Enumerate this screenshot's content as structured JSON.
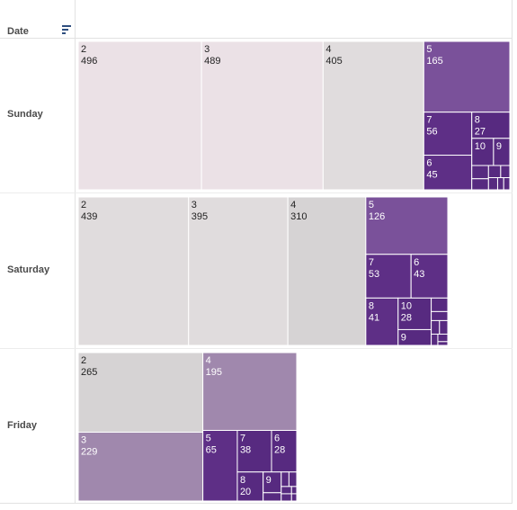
{
  "header": {
    "column_label": "Date",
    "sort_icon": "sort-descending-icon"
  },
  "colors": {
    "scale": [
      "#ebe1e6",
      "#e0dcdd",
      "#d6d3d4",
      "#a088ad",
      "#7a519a",
      "#5e2f86",
      "#572a80"
    ],
    "text_dark": "#222222",
    "text_light": "#ffffff"
  },
  "chart_data": {
    "type": "treemap",
    "title": "",
    "row_field": "Date",
    "rows": [
      {
        "label": "Sunday",
        "items": [
          {
            "name": "2",
            "value": 496,
            "label": "496"
          },
          {
            "name": "3",
            "value": 489,
            "label": "489"
          },
          {
            "name": "4",
            "value": 405,
            "label": "405"
          },
          {
            "name": "5",
            "value": 165,
            "label": "165"
          },
          {
            "name": "7",
            "value": 56,
            "label": "56"
          },
          {
            "name": "6",
            "value": 45,
            "label": "45"
          },
          {
            "name": "8",
            "value": 27,
            "label": "27"
          },
          {
            "name": "10",
            "value": 16,
            "label": ""
          },
          {
            "name": "9",
            "value": 12,
            "label": ""
          },
          {
            "name": "",
            "value": 6,
            "label": ""
          },
          {
            "name": "",
            "value": 5,
            "label": ""
          },
          {
            "name": "",
            "value": 4,
            "label": ""
          },
          {
            "name": "",
            "value": 3,
            "label": ""
          },
          {
            "name": "",
            "value": 3,
            "label": ""
          },
          {
            "name": "",
            "value": 2,
            "label": ""
          },
          {
            "name": "",
            "value": 2,
            "label": ""
          }
        ]
      },
      {
        "label": "Saturday",
        "items": [
          {
            "name": "2",
            "value": 439,
            "label": "439"
          },
          {
            "name": "3",
            "value": 395,
            "label": "395"
          },
          {
            "name": "4",
            "value": 310,
            "label": "310"
          },
          {
            "name": "5",
            "value": 126,
            "label": "126"
          },
          {
            "name": "7",
            "value": 53,
            "label": "53"
          },
          {
            "name": "6",
            "value": 43,
            "label": "43"
          },
          {
            "name": "8",
            "value": 41,
            "label": "41"
          },
          {
            "name": "10",
            "value": 28,
            "label": "28"
          },
          {
            "name": "9",
            "value": 14,
            "label": ""
          },
          {
            "name": "",
            "value": 6,
            "label": ""
          },
          {
            "name": "",
            "value": 4,
            "label": ""
          },
          {
            "name": "",
            "value": 3,
            "label": ""
          },
          {
            "name": "",
            "value": 3,
            "label": ""
          },
          {
            "name": "",
            "value": 2,
            "label": ""
          },
          {
            "name": "",
            "value": 2,
            "label": ""
          },
          {
            "name": "",
            "value": 1,
            "label": ""
          }
        ]
      },
      {
        "label": "Friday",
        "items": [
          {
            "name": "2",
            "value": 265,
            "label": "265"
          },
          {
            "name": "3",
            "value": 229,
            "label": "229"
          },
          {
            "name": "4",
            "value": 195,
            "label": "195"
          },
          {
            "name": "5",
            "value": 65,
            "label": "65"
          },
          {
            "name": "7",
            "value": 38,
            "label": "38"
          },
          {
            "name": "6",
            "value": 28,
            "label": "28"
          },
          {
            "name": "8",
            "value": 20,
            "label": "20"
          },
          {
            "name": "9",
            "value": 10,
            "label": ""
          },
          {
            "name": "",
            "value": 4,
            "label": ""
          },
          {
            "name": "",
            "value": 3,
            "label": ""
          },
          {
            "name": "",
            "value": 3,
            "label": ""
          },
          {
            "name": "",
            "value": 2,
            "label": ""
          },
          {
            "name": "",
            "value": 2,
            "label": ""
          },
          {
            "name": "",
            "value": 1,
            "label": ""
          },
          {
            "name": "",
            "value": 1,
            "label": ""
          }
        ]
      }
    ]
  }
}
